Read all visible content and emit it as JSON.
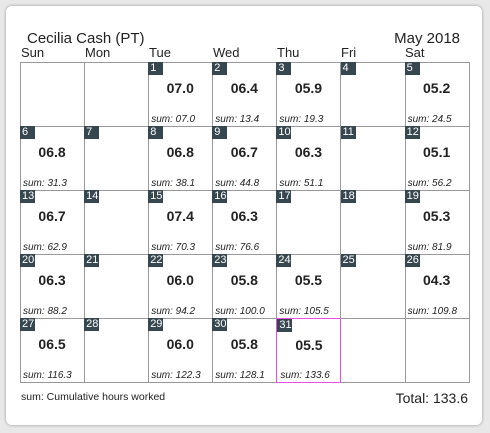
{
  "header": {
    "name": "Cecilia Cash (PT)",
    "month": "May 2018"
  },
  "weekdays": [
    "Sun",
    "Mon",
    "Tue",
    "Wed",
    "Thu",
    "Fri",
    "Sat"
  ],
  "weeks": [
    [
      null,
      null,
      {
        "day": "1",
        "hours": "07.0",
        "sum": "sum: 07.0"
      },
      {
        "day": "2",
        "hours": "06.4",
        "sum": "sum: 13.4"
      },
      {
        "day": "3",
        "hours": "05.9",
        "sum": "sum: 19.3"
      },
      {
        "day": "4"
      },
      {
        "day": "5",
        "hours": "05.2",
        "sum": "sum: 24.5"
      }
    ],
    [
      {
        "day": "6",
        "hours": "06.8",
        "sum": "sum: 31.3"
      },
      {
        "day": "7"
      },
      {
        "day": "8",
        "hours": "06.8",
        "sum": "sum: 38.1"
      },
      {
        "day": "9",
        "hours": "06.7",
        "sum": "sum: 44.8"
      },
      {
        "day": "10",
        "hours": "06.3",
        "sum": "sum: 51.1"
      },
      {
        "day": "11"
      },
      {
        "day": "12",
        "hours": "05.1",
        "sum": "sum: 56.2"
      }
    ],
    [
      {
        "day": "13",
        "hours": "06.7",
        "sum": "sum: 62.9"
      },
      {
        "day": "14"
      },
      {
        "day": "15",
        "hours": "07.4",
        "sum": "sum: 70.3"
      },
      {
        "day": "16",
        "hours": "06.3",
        "sum": "sum: 76.6"
      },
      {
        "day": "17"
      },
      {
        "day": "18"
      },
      {
        "day": "19",
        "hours": "05.3",
        "sum": "sum: 81.9"
      }
    ],
    [
      {
        "day": "20",
        "hours": "06.3",
        "sum": "sum: 88.2"
      },
      {
        "day": "21"
      },
      {
        "day": "22",
        "hours": "06.0",
        "sum": "sum: 94.2"
      },
      {
        "day": "23",
        "hours": "05.8",
        "sum": "sum: 100.0"
      },
      {
        "day": "24",
        "hours": "05.5",
        "sum": "sum: 105.5"
      },
      {
        "day": "25"
      },
      {
        "day": "26",
        "hours": "04.3",
        "sum": "sum: 109.8"
      }
    ],
    [
      {
        "day": "27",
        "hours": "06.5",
        "sum": "sum: 116.3"
      },
      {
        "day": "28"
      },
      {
        "day": "29",
        "hours": "06.0",
        "sum": "sum: 122.3"
      },
      {
        "day": "30",
        "hours": "05.8",
        "sum": "sum: 128.1"
      },
      {
        "day": "31",
        "hours": "05.5",
        "sum": "sum: 133.6",
        "today": true
      },
      null,
      null
    ]
  ],
  "footer": {
    "legend": "sum: Cumulative hours worked",
    "total": "Total: 133.6"
  },
  "colors": {
    "day_badge": "#37474f",
    "today_border": "#e84ee8"
  }
}
